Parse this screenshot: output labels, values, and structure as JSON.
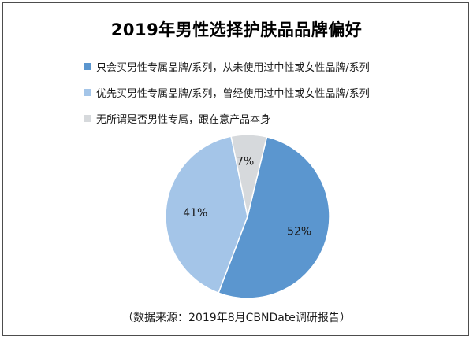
{
  "chart_data": {
    "type": "pie",
    "title": "2019年男性选择护肤品品牌偏好",
    "categories": [
      "只会买男性专属品牌/系列，从未使用过中性或女性品牌/系列",
      "优先买男性专属品牌/系列，曾经使用过中性或女性品牌/系列",
      "无所谓是否男性专属，跟在意产品本身"
    ],
    "values": [
      52,
      41,
      7
    ],
    "value_labels": [
      "52%",
      "41%",
      "7%"
    ],
    "colors": [
      "#5b96cf",
      "#a4c5e8",
      "#d6d9dc"
    ],
    "legend_position": "top-left"
  },
  "source": "（数据来源：2019年8月CBNDate调研报告）"
}
